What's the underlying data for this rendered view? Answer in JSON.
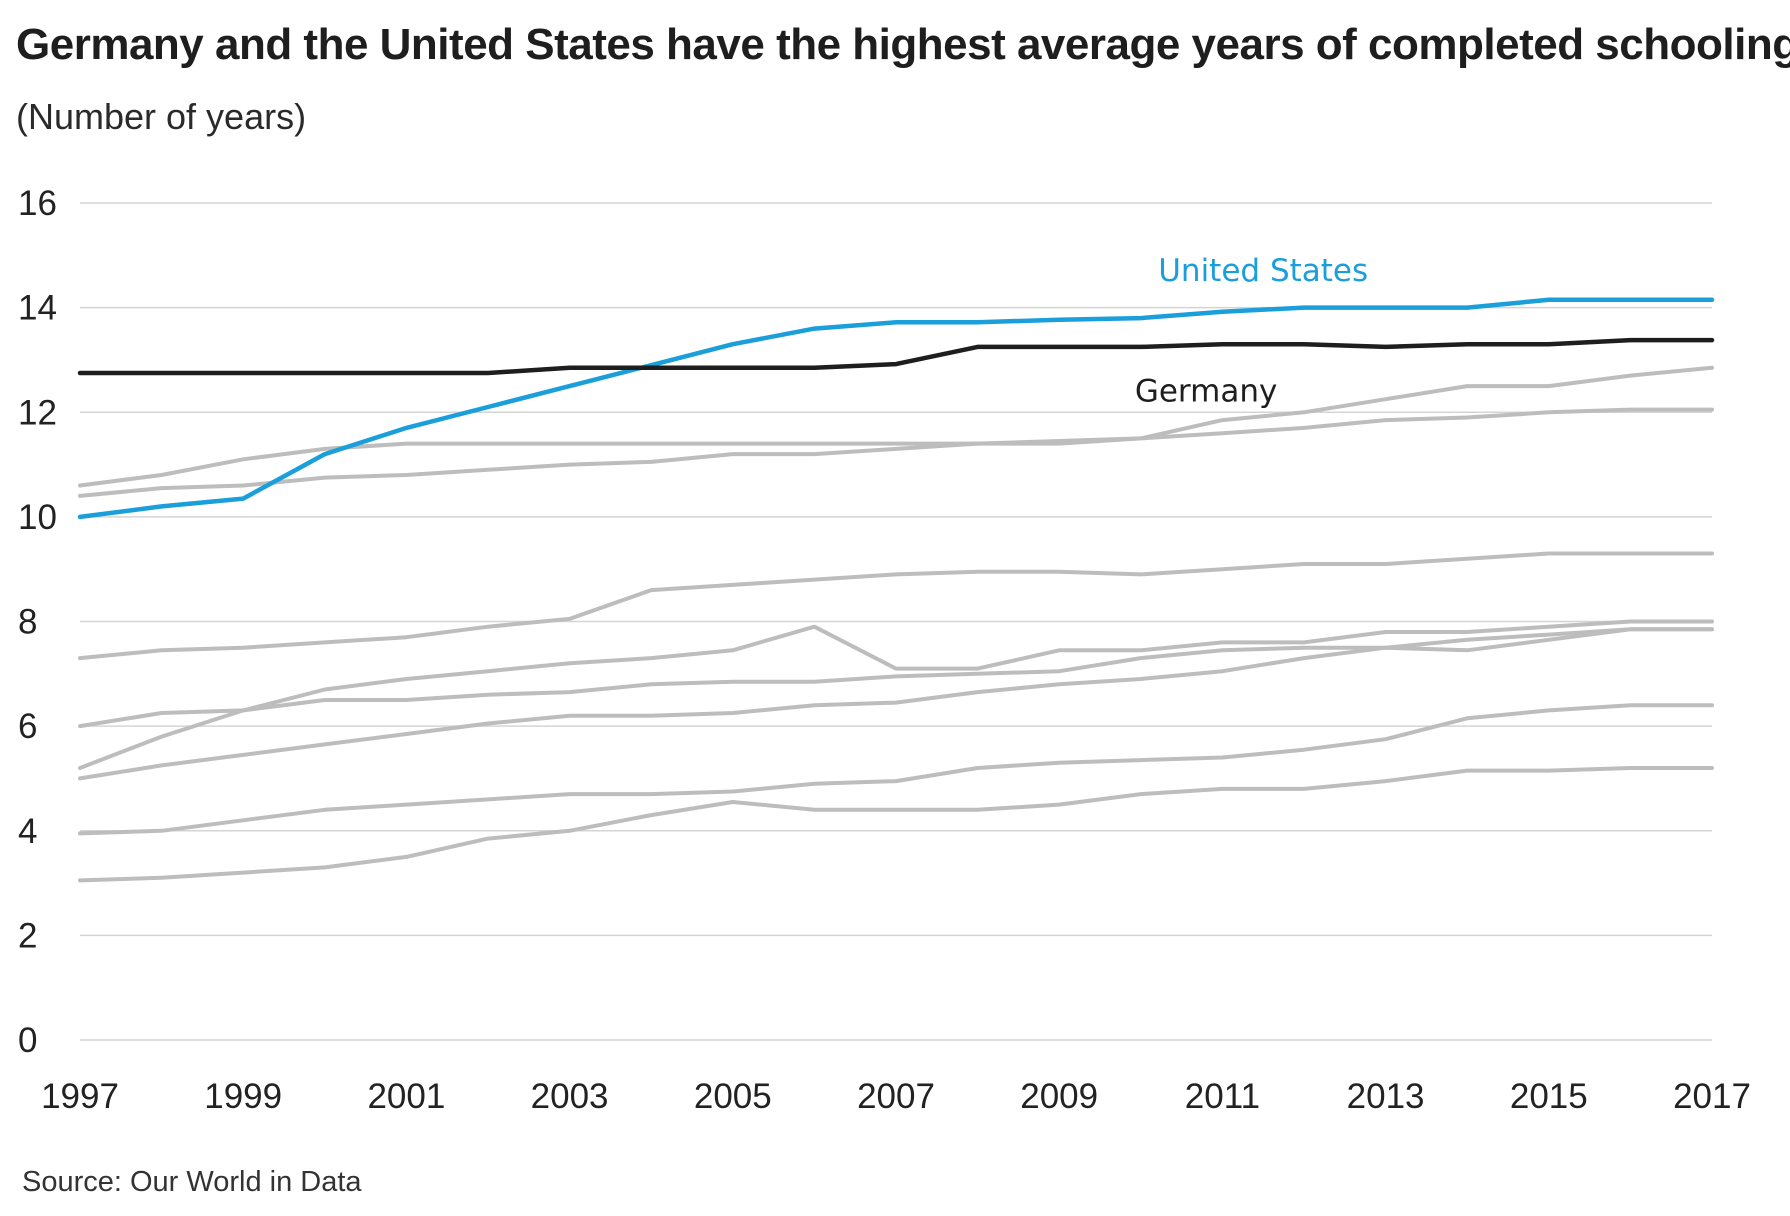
{
  "title": "Germany and the United States have the highest average years of completed schooling",
  "subtitle": "(Number of years)",
  "source": "Source: Our World in Data",
  "colors": {
    "highlight": "#1a9fdb",
    "germany": "#1e1e1e",
    "other": "#bdbdbd",
    "grid": "#d4d4d4"
  },
  "chart_data": {
    "type": "line",
    "x": [
      1997,
      1998,
      1999,
      2000,
      2001,
      2002,
      2003,
      2004,
      2005,
      2006,
      2007,
      2008,
      2009,
      2010,
      2011,
      2012,
      2013,
      2014,
      2015,
      2016,
      2017
    ],
    "xticks": [
      1997,
      1999,
      2001,
      2003,
      2005,
      2007,
      2009,
      2011,
      2013,
      2015,
      2017
    ],
    "yticks": [
      0,
      2,
      4,
      6,
      8,
      10,
      12,
      14,
      16
    ],
    "ylim": [
      0,
      16
    ],
    "xlim": [
      1997,
      2017
    ],
    "grid": true,
    "series": [
      {
        "name": "United States",
        "highlight": "us",
        "labelYear": 2011.5,
        "labelValue": 14.7,
        "values": [
          10.0,
          10.2,
          10.35,
          11.2,
          11.7,
          12.1,
          12.5,
          12.9,
          13.3,
          13.6,
          13.72,
          13.72,
          13.77,
          13.8,
          13.92,
          14.0,
          14.0,
          14.0,
          14.15,
          14.15,
          14.15
        ]
      },
      {
        "name": "Germany",
        "highlight": "de",
        "labelYear": 2010.8,
        "labelValue": 12.4,
        "values": [
          12.75,
          12.75,
          12.75,
          12.75,
          12.75,
          12.75,
          12.85,
          12.85,
          12.85,
          12.85,
          12.92,
          13.25,
          13.25,
          13.25,
          13.3,
          13.3,
          13.25,
          13.3,
          13.3,
          13.38,
          13.38
        ]
      },
      {
        "values": [
          10.6,
          10.8,
          11.1,
          11.3,
          11.4,
          11.4,
          11.4,
          11.4,
          11.4,
          11.4,
          11.4,
          11.4,
          11.45,
          11.5,
          11.85,
          12.0,
          12.25,
          12.5,
          12.5,
          12.7,
          12.85
        ]
      },
      {
        "values": [
          10.4,
          10.55,
          10.6,
          10.75,
          10.8,
          10.9,
          11.0,
          11.05,
          11.2,
          11.2,
          11.3,
          11.4,
          11.4,
          11.5,
          11.6,
          11.7,
          11.85,
          11.9,
          12.0,
          12.05,
          12.05
        ]
      },
      {
        "values": [
          7.3,
          7.45,
          7.5,
          7.6,
          7.7,
          7.9,
          8.05,
          8.6,
          8.7,
          8.8,
          8.9,
          8.95,
          8.95,
          8.9,
          9.0,
          9.1,
          9.1,
          9.2,
          9.3,
          9.3,
          9.3
        ]
      },
      {
        "values": [
          5.2,
          5.8,
          6.3,
          6.7,
          6.9,
          7.05,
          7.2,
          7.3,
          7.45,
          7.9,
          7.1,
          7.1,
          7.45,
          7.45,
          7.6,
          7.6,
          7.8,
          7.8,
          7.9,
          8.0,
          8.0
        ]
      },
      {
        "values": [
          6.0,
          6.25,
          6.3,
          6.5,
          6.5,
          6.6,
          6.65,
          6.8,
          6.85,
          6.85,
          6.95,
          7.0,
          7.05,
          7.3,
          7.45,
          7.5,
          7.5,
          7.45,
          7.65,
          7.85,
          7.85
        ]
      },
      {
        "values": [
          5.0,
          5.25,
          5.45,
          5.65,
          5.85,
          6.05,
          6.2,
          6.2,
          6.25,
          6.4,
          6.45,
          6.65,
          6.8,
          6.9,
          7.05,
          7.3,
          7.5,
          7.65,
          7.75,
          7.85,
          7.85
        ]
      },
      {
        "values": [
          3.95,
          4.0,
          4.2,
          4.4,
          4.5,
          4.6,
          4.7,
          4.7,
          4.75,
          4.9,
          4.95,
          5.2,
          5.3,
          5.35,
          5.4,
          5.55,
          5.75,
          6.15,
          6.3,
          6.4,
          6.4
        ]
      },
      {
        "values": [
          3.05,
          3.1,
          3.2,
          3.3,
          3.5,
          3.85,
          4.0,
          4.3,
          4.55,
          4.4,
          4.4,
          4.4,
          4.5,
          4.7,
          4.8,
          4.8,
          4.95,
          5.15,
          5.15,
          5.2,
          5.2
        ]
      }
    ]
  }
}
